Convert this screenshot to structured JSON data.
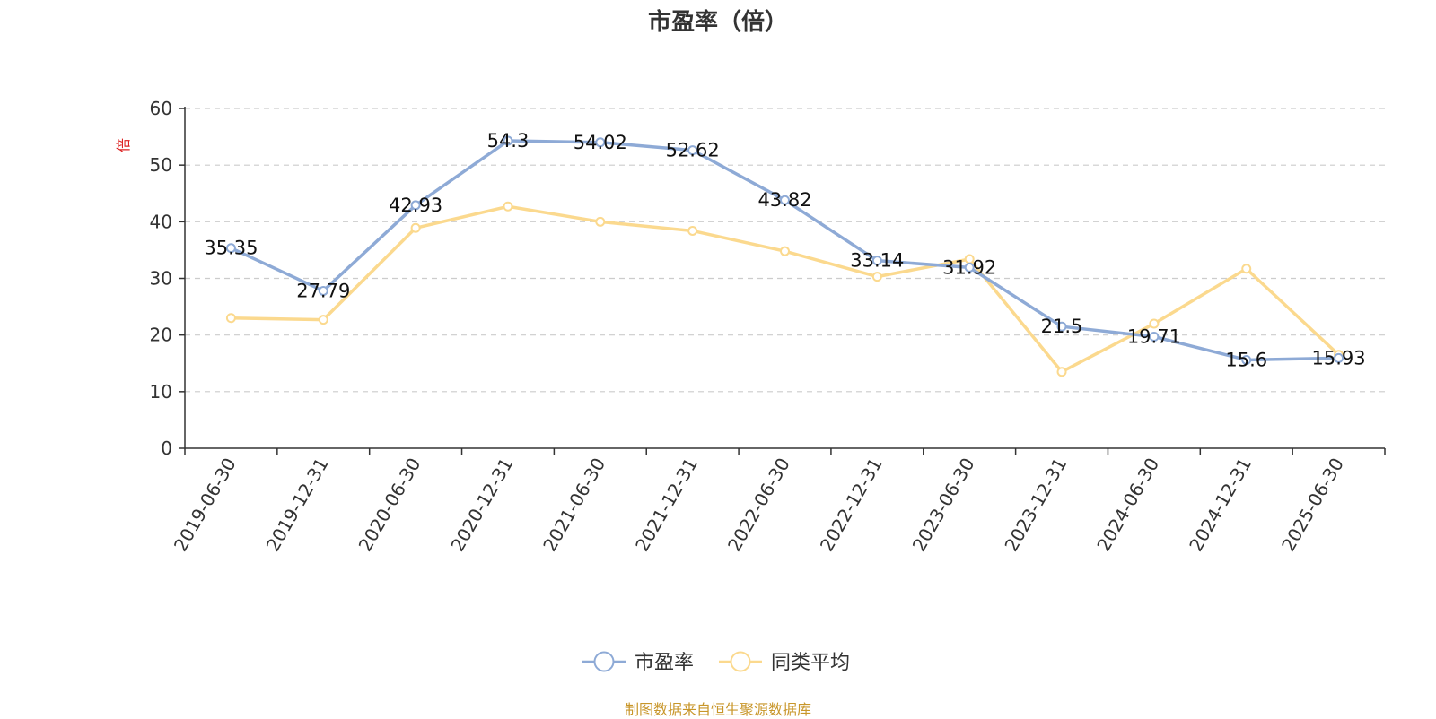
{
  "chart_data": {
    "type": "line",
    "title": "市盈率（倍）",
    "ylabel": "倍",
    "ylim": [
      0,
      60
    ],
    "yticks": [
      0,
      10,
      20,
      30,
      40,
      50,
      60
    ],
    "grid": true,
    "legend_position": "bottom",
    "categories": [
      "2019-06-30",
      "2019-12-31",
      "2020-06-30",
      "2020-12-31",
      "2021-06-30",
      "2021-12-31",
      "2022-06-30",
      "2022-12-31",
      "2023-06-30",
      "2023-12-31",
      "2024-06-30",
      "2024-12-31",
      "2025-06-30"
    ],
    "series": [
      {
        "name": "市盈率",
        "color": "#8eaad6",
        "values": [
          35.35,
          27.79,
          42.93,
          54.3,
          54.02,
          52.62,
          43.82,
          33.14,
          31.92,
          21.5,
          19.71,
          15.6,
          15.93
        ],
        "data_labels": [
          "35.35",
          "27.79",
          "42.93",
          "54.3",
          "54.02",
          "52.62",
          "43.82",
          "33.14",
          "31.92",
          "21.5",
          "19.71",
          "15.6",
          "15.93"
        ]
      },
      {
        "name": "同类平均",
        "color": "#fbd98e",
        "values": [
          23.0,
          22.7,
          38.9,
          42.7,
          40.0,
          38.4,
          34.8,
          30.3,
          33.4,
          13.5,
          22.0,
          31.7,
          16.5
        ]
      }
    ]
  },
  "footer": {
    "source": "制图数据来自恒生聚源数据库"
  }
}
